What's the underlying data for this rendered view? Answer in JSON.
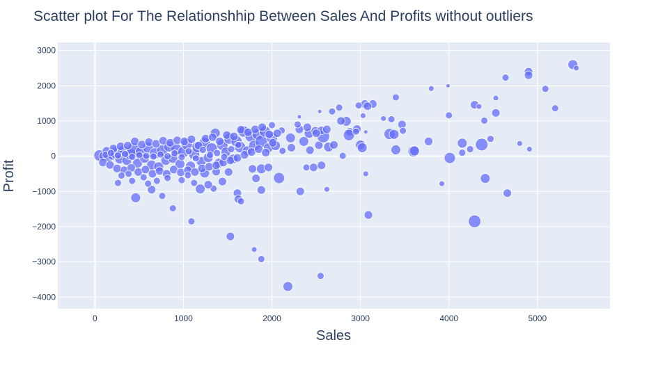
{
  "chart_data": {
    "type": "scatter",
    "title": "Scatter plot For The Relationshhip Between Sales And Profits without outliers",
    "xlabel": "Sales",
    "ylabel": "Profit",
    "xlim": [
      -420,
      5820
    ],
    "ylim": [
      -4330,
      3230
    ],
    "x_ticks": [
      0,
      1000,
      2000,
      3000,
      4000,
      5000
    ],
    "x_tick_labels": [
      "0",
      "1000",
      "2000",
      "3000",
      "4000",
      "5000"
    ],
    "y_ticks": [
      3000,
      2000,
      1000,
      0,
      -1000,
      -2000,
      -3000,
      -4000
    ],
    "y_tick_labels": [
      "3000",
      "2000",
      "1000",
      "0",
      "−1000",
      "−2000",
      "−3000",
      "−4000"
    ],
    "grid": true,
    "legend": "none",
    "marker_color": "#636efa",
    "marker_opacity": 0.75,
    "plot_bgcolor": "#e5ecf6",
    "size_note": "marker size varies per point",
    "points": [
      [
        5400,
        2600,
        7
      ],
      [
        5440,
        2500,
        4
      ],
      [
        4900,
        2400,
        6
      ],
      [
        4900,
        2300,
        6
      ],
      [
        4640,
        2230,
        5
      ],
      [
        5090,
        1910,
        5
      ],
      [
        3800,
        1920,
        4
      ],
      [
        3990,
        2000,
        3
      ],
      [
        5200,
        1360,
        5
      ],
      [
        4530,
        1650,
        4
      ],
      [
        3400,
        1670,
        5
      ],
      [
        4290,
        1460,
        6
      ],
      [
        4340,
        1410,
        4
      ],
      [
        4530,
        1230,
        6
      ],
      [
        4000,
        1160,
        5
      ],
      [
        4400,
        1010,
        5
      ],
      [
        3140,
        1480,
        6
      ],
      [
        3050,
        1480,
        6
      ],
      [
        2980,
        1440,
        5
      ],
      [
        3080,
        1420,
        6
      ],
      [
        2680,
        1270,
        5
      ],
      [
        2760,
        1380,
        5
      ],
      [
        3260,
        1070,
        4
      ],
      [
        3350,
        1050,
        5
      ],
      [
        3030,
        1150,
        4
      ],
      [
        2540,
        1270,
        3
      ],
      [
        2310,
        1120,
        3
      ],
      [
        3470,
        900,
        6
      ],
      [
        3330,
        630,
        8
      ],
      [
        3380,
        620,
        7
      ],
      [
        3480,
        720,
        5
      ],
      [
        2960,
        770,
        6
      ],
      [
        2880,
        690,
        6
      ],
      [
        2840,
        990,
        7
      ],
      [
        3060,
        690,
        3
      ],
      [
        2780,
        1000,
        6
      ],
      [
        2870,
        600,
        8
      ],
      [
        3000,
        320,
        7
      ],
      [
        2950,
        700,
        5
      ],
      [
        3770,
        420,
        6
      ],
      [
        3400,
        180,
        7
      ],
      [
        3600,
        140,
        8
      ],
      [
        3020,
        240,
        7
      ],
      [
        3610,
        150,
        7
      ],
      [
        4150,
        370,
        7
      ],
      [
        4240,
        200,
        5
      ],
      [
        4370,
        330,
        9
      ],
      [
        4470,
        490,
        5
      ],
      [
        4800,
        360,
        4
      ],
      [
        4910,
        200,
        4
      ],
      [
        4150,
        100,
        5
      ],
      [
        4010,
        -50,
        8
      ],
      [
        2800,
        10,
        5
      ],
      [
        3060,
        -500,
        4
      ],
      [
        3920,
        -780,
        4
      ],
      [
        4410,
        -630,
        7
      ],
      [
        4660,
        -1050,
        6
      ],
      [
        4290,
        -1850,
        9
      ],
      [
        3090,
        -1670,
        6
      ],
      [
        2620,
        -940,
        4
      ],
      [
        2320,
        -1000,
        6
      ],
      [
        2390,
        -320,
        5
      ],
      [
        2470,
        -320,
        6
      ],
      [
        2560,
        -260,
        6
      ],
      [
        2080,
        -620,
        8
      ],
      [
        1610,
        -1050,
        6
      ],
      [
        1620,
        -1220,
        6
      ],
      [
        1650,
        -1280,
        5
      ],
      [
        1880,
        -960,
        6
      ],
      [
        1440,
        -720,
        6
      ],
      [
        1820,
        -630,
        6
      ],
      [
        1780,
        -360,
        6
      ],
      [
        1880,
        -360,
        7
      ],
      [
        1960,
        -320,
        6
      ],
      [
        1340,
        -920,
        5
      ],
      [
        1280,
        -810,
        6
      ],
      [
        1190,
        -930,
        7
      ],
      [
        1120,
        -760,
        5
      ],
      [
        1240,
        -480,
        7
      ],
      [
        1370,
        -440,
        6
      ],
      [
        1510,
        -450,
        6
      ],
      [
        880,
        -1480,
        5
      ],
      [
        1090,
        -1850,
        5
      ],
      [
        460,
        -1180,
        7
      ],
      [
        640,
        -950,
        6
      ],
      [
        760,
        -1130,
        5
      ],
      [
        1530,
        -2280,
        6
      ],
      [
        1800,
        -2650,
        4
      ],
      [
        1880,
        -2920,
        5
      ],
      [
        2180,
        -3700,
        7
      ],
      [
        2550,
        -3400,
        5
      ],
      [
        2000,
        880,
        5
      ],
      [
        2110,
        730,
        5
      ],
      [
        2210,
        520,
        7
      ],
      [
        2360,
        420,
        7
      ],
      [
        2420,
        650,
        7
      ],
      [
        2490,
        720,
        6
      ],
      [
        2530,
        310,
        6
      ],
      [
        2580,
        560,
        9
      ],
      [
        2640,
        260,
        7
      ],
      [
        2700,
        320,
        6
      ],
      [
        2430,
        170,
        6
      ],
      [
        2220,
        240,
        6
      ],
      [
        2120,
        150,
        5
      ],
      [
        2310,
        760,
        6
      ],
      [
        2400,
        820,
        6
      ],
      [
        2290,
        900,
        5
      ],
      [
        2560,
        730,
        6
      ],
      [
        2620,
        760,
        6
      ],
      [
        2500,
        650,
        6
      ],
      [
        50,
        20,
        8
      ],
      [
        100,
        0,
        7
      ],
      [
        150,
        -30,
        7
      ],
      [
        200,
        50,
        8
      ],
      [
        240,
        100,
        9
      ],
      [
        280,
        -80,
        7
      ],
      [
        320,
        150,
        8
      ],
      [
        360,
        -120,
        7
      ],
      [
        400,
        60,
        8
      ],
      [
        440,
        180,
        10
      ],
      [
        480,
        -200,
        7
      ],
      [
        520,
        120,
        8
      ],
      [
        560,
        -60,
        7
      ],
      [
        600,
        250,
        8
      ],
      [
        640,
        -250,
        7
      ],
      [
        680,
        80,
        8
      ],
      [
        720,
        -300,
        7
      ],
      [
        760,
        160,
        8
      ],
      [
        800,
        -120,
        7
      ],
      [
        840,
        280,
        8
      ],
      [
        880,
        -60,
        7
      ],
      [
        920,
        200,
        8
      ],
      [
        960,
        -220,
        7
      ],
      [
        1000,
        120,
        8
      ],
      [
        1040,
        340,
        8
      ],
      [
        1080,
        -280,
        7
      ],
      [
        1120,
        60,
        8
      ],
      [
        1160,
        260,
        8
      ],
      [
        1200,
        -150,
        7
      ],
      [
        1240,
        380,
        8
      ],
      [
        1280,
        -40,
        7
      ],
      [
        1320,
        220,
        8
      ],
      [
        1360,
        660,
        7
      ],
      [
        1400,
        -200,
        7
      ],
      [
        1440,
        320,
        8
      ],
      [
        1480,
        120,
        7
      ],
      [
        1520,
        500,
        8
      ],
      [
        1560,
        -80,
        7
      ],
      [
        1600,
        420,
        8
      ],
      [
        1640,
        260,
        8
      ],
      [
        1680,
        700,
        8
      ],
      [
        1720,
        150,
        7
      ],
      [
        1760,
        560,
        8
      ],
      [
        1800,
        300,
        8
      ],
      [
        1840,
        620,
        8
      ],
      [
        1880,
        420,
        9
      ],
      [
        1920,
        700,
        8
      ],
      [
        1960,
        240,
        7
      ],
      [
        2000,
        520,
        8
      ],
      [
        2040,
        300,
        7
      ],
      [
        90,
        -180,
        6
      ],
      [
        130,
        150,
        6
      ],
      [
        170,
        -250,
        6
      ],
      [
        210,
        220,
        6
      ],
      [
        250,
        -350,
        6
      ],
      [
        290,
        280,
        6
      ],
      [
        330,
        -400,
        6
      ],
      [
        370,
        300,
        6
      ],
      [
        410,
        -330,
        6
      ],
      [
        450,
        420,
        6
      ],
      [
        490,
        -450,
        6
      ],
      [
        530,
        330,
        6
      ],
      [
        570,
        -380,
        6
      ],
      [
        610,
        400,
        6
      ],
      [
        650,
        -500,
        6
      ],
      [
        690,
        350,
        6
      ],
      [
        730,
        -420,
        6
      ],
      [
        770,
        440,
        6
      ],
      [
        810,
        -500,
        6
      ],
      [
        850,
        380,
        6
      ],
      [
        890,
        -380,
        6
      ],
      [
        930,
        450,
        6
      ],
      [
        970,
        -460,
        6
      ],
      [
        1010,
        420,
        6
      ],
      [
        1050,
        -400,
        6
      ],
      [
        1090,
        480,
        6
      ],
      [
        1130,
        -450,
        6
      ],
      [
        1170,
        300,
        6
      ],
      [
        1210,
        -350,
        6
      ],
      [
        1250,
        500,
        6
      ],
      [
        1290,
        -300,
        6
      ],
      [
        1330,
        540,
        6
      ],
      [
        1370,
        -260,
        6
      ],
      [
        1410,
        420,
        6
      ],
      [
        1450,
        -180,
        6
      ],
      [
        1490,
        600,
        6
      ],
      [
        1530,
        -120,
        6
      ],
      [
        1570,
        560,
        6
      ],
      [
        1610,
        -50,
        6
      ],
      [
        1650,
        750,
        6
      ],
      [
        1690,
        40,
        6
      ],
      [
        1730,
        680,
        6
      ],
      [
        1770,
        120,
        6
      ],
      [
        1810,
        760,
        6
      ],
      [
        1850,
        200,
        6
      ],
      [
        1890,
        820,
        6
      ],
      [
        1930,
        100,
        6
      ],
      [
        1970,
        620,
        6
      ],
      [
        2010,
        380,
        6
      ],
      [
        2060,
        650,
        6
      ],
      [
        120,
        40,
        5
      ],
      [
        180,
        90,
        5
      ],
      [
        260,
        20,
        5
      ],
      [
        340,
        60,
        5
      ],
      [
        420,
        -20,
        5
      ],
      [
        500,
        30,
        5
      ],
      [
        580,
        10,
        5
      ],
      [
        660,
        -10,
        5
      ],
      [
        740,
        50,
        5
      ],
      [
        820,
        0,
        5
      ],
      [
        900,
        80,
        5
      ],
      [
        980,
        -30,
        5
      ],
      [
        1060,
        140,
        5
      ],
      [
        1140,
        -60,
        5
      ],
      [
        1220,
        180,
        5
      ],
      [
        1300,
        30,
        5
      ],
      [
        1380,
        90,
        5
      ],
      [
        1460,
        -20,
        5
      ],
      [
        1540,
        200,
        5
      ],
      [
        1620,
        320,
        5
      ],
      [
        300,
        -550,
        5
      ],
      [
        380,
        -500,
        5
      ],
      [
        550,
        -600,
        5
      ],
      [
        700,
        -700,
        5
      ],
      [
        820,
        -620,
        5
      ],
      [
        980,
        -680,
        5
      ],
      [
        420,
        -700,
        5
      ],
      [
        600,
        -780,
        5
      ],
      [
        260,
        -760,
        5
      ],
      [
        1050,
        -540,
        5
      ]
    ]
  }
}
